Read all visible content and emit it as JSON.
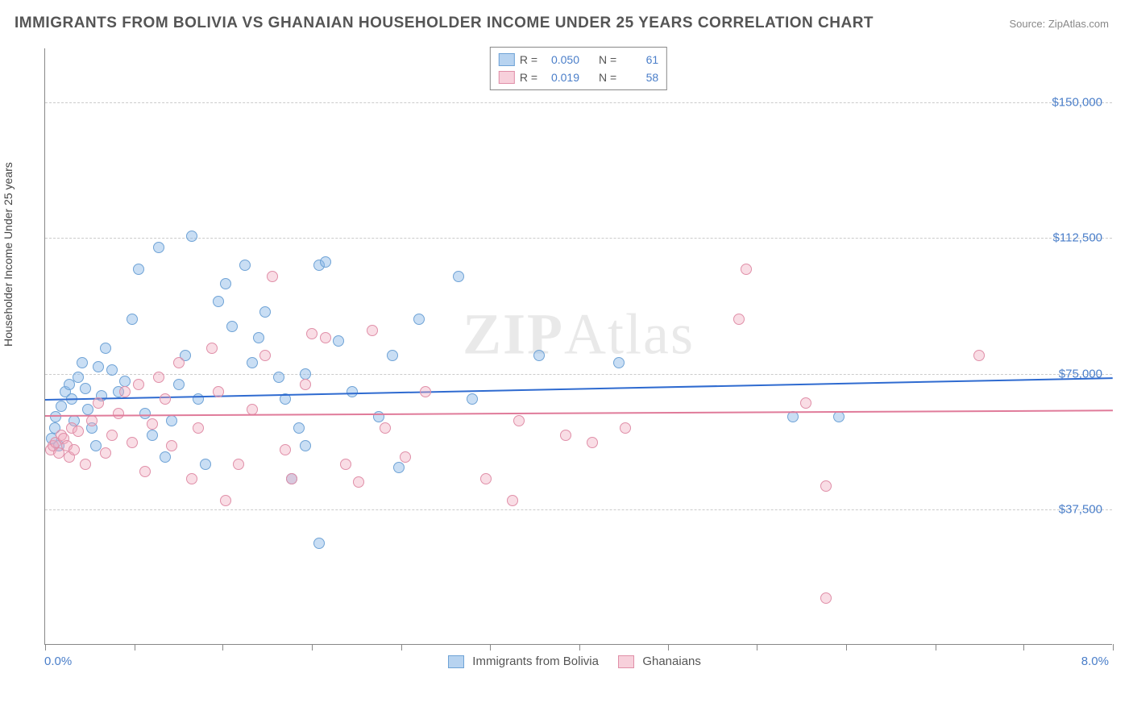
{
  "title": "IMMIGRANTS FROM BOLIVIA VS GHANAIAN HOUSEHOLDER INCOME UNDER 25 YEARS CORRELATION CHART",
  "source_prefix": "Source: ",
  "source": "ZipAtlas.com",
  "ylabel": "Householder Income Under 25 years",
  "watermark_a": "ZIP",
  "watermark_b": "Atlas",
  "chart": {
    "type": "scatter",
    "xlim": [
      0,
      8
    ],
    "ylim": [
      0,
      165000
    ],
    "x_tick_labels": [
      "0.0%",
      "8.0%"
    ],
    "x_minor_ticks": [
      0,
      0.67,
      1.33,
      2.0,
      2.67,
      3.33,
      4.0,
      4.67,
      5.33,
      6.0,
      6.67,
      7.33,
      8.0
    ],
    "y_grid": [
      {
        "v": 37500,
        "label": "$37,500"
      },
      {
        "v": 75000,
        "label": "$75,000"
      },
      {
        "v": 112500,
        "label": "$112,500"
      },
      {
        "v": 150000,
        "label": "$150,000"
      }
    ],
    "grid_color": "#cccccc",
    "background_color": "#ffffff",
    "axis_color": "#888888",
    "point_radius": 7,
    "series": [
      {
        "key": "bolivia",
        "label": "Immigrants from Bolivia",
        "fill": "rgba(135,181,230,0.45)",
        "stroke": "#6fa3d6",
        "trend_color": "#2f6bd0",
        "r": "0.050",
        "n": "61",
        "trend": {
          "y_at_x0": 68000,
          "y_at_x8": 74000
        },
        "points": [
          [
            0.05,
            57000
          ],
          [
            0.07,
            60000
          ],
          [
            0.08,
            63000
          ],
          [
            0.1,
            55000
          ],
          [
            0.12,
            66000
          ],
          [
            0.15,
            70000
          ],
          [
            0.18,
            72000
          ],
          [
            0.2,
            68000
          ],
          [
            0.22,
            62000
          ],
          [
            0.25,
            74000
          ],
          [
            0.28,
            78000
          ],
          [
            0.3,
            71000
          ],
          [
            0.32,
            65000
          ],
          [
            0.35,
            60000
          ],
          [
            0.38,
            55000
          ],
          [
            0.4,
            77000
          ],
          [
            0.42,
            69000
          ],
          [
            0.45,
            82000
          ],
          [
            0.5,
            76000
          ],
          [
            0.55,
            70000
          ],
          [
            0.6,
            73000
          ],
          [
            0.65,
            90000
          ],
          [
            0.7,
            104000
          ],
          [
            0.75,
            64000
          ],
          [
            0.8,
            58000
          ],
          [
            0.85,
            110000
          ],
          [
            0.9,
            52000
          ],
          [
            0.95,
            62000
          ],
          [
            1.0,
            72000
          ],
          [
            1.05,
            80000
          ],
          [
            1.1,
            113000
          ],
          [
            1.15,
            68000
          ],
          [
            1.2,
            50000
          ],
          [
            1.3,
            95000
          ],
          [
            1.35,
            100000
          ],
          [
            1.4,
            88000
          ],
          [
            1.5,
            105000
          ],
          [
            1.55,
            78000
          ],
          [
            1.6,
            85000
          ],
          [
            1.65,
            92000
          ],
          [
            1.75,
            74000
          ],
          [
            1.8,
            68000
          ],
          [
            1.85,
            46000
          ],
          [
            1.9,
            60000
          ],
          [
            1.95,
            55000
          ],
          [
            2.05,
            105000
          ],
          [
            2.1,
            106000
          ],
          [
            2.2,
            84000
          ],
          [
            2.3,
            70000
          ],
          [
            2.5,
            63000
          ],
          [
            2.6,
            80000
          ],
          [
            2.65,
            49000
          ],
          [
            2.8,
            90000
          ],
          [
            3.1,
            102000
          ],
          [
            3.2,
            68000
          ],
          [
            3.7,
            80000
          ],
          [
            4.3,
            78000
          ],
          [
            5.6,
            63000
          ],
          [
            5.95,
            63000
          ],
          [
            2.05,
            28000
          ],
          [
            1.95,
            75000
          ]
        ]
      },
      {
        "key": "ghana",
        "label": "Ghanaians",
        "fill": "rgba(240,170,190,0.4)",
        "stroke": "#e08fa8",
        "trend_color": "#e07b9a",
        "r": "0.019",
        "n": "58",
        "trend": {
          "y_at_x0": 63500,
          "y_at_x8": 65000
        },
        "points": [
          [
            0.04,
            54000
          ],
          [
            0.06,
            55000
          ],
          [
            0.08,
            56000
          ],
          [
            0.1,
            53000
          ],
          [
            0.12,
            58000
          ],
          [
            0.14,
            57000
          ],
          [
            0.16,
            55000
          ],
          [
            0.18,
            52000
          ],
          [
            0.2,
            60000
          ],
          [
            0.22,
            54000
          ],
          [
            0.25,
            59000
          ],
          [
            0.3,
            50000
          ],
          [
            0.35,
            62000
          ],
          [
            0.4,
            67000
          ],
          [
            0.45,
            53000
          ],
          [
            0.5,
            58000
          ],
          [
            0.55,
            64000
          ],
          [
            0.6,
            70000
          ],
          [
            0.65,
            56000
          ],
          [
            0.7,
            72000
          ],
          [
            0.75,
            48000
          ],
          [
            0.8,
            61000
          ],
          [
            0.85,
            74000
          ],
          [
            0.9,
            68000
          ],
          [
            0.95,
            55000
          ],
          [
            1.0,
            78000
          ],
          [
            1.1,
            46000
          ],
          [
            1.15,
            60000
          ],
          [
            1.25,
            82000
          ],
          [
            1.3,
            70000
          ],
          [
            1.35,
            40000
          ],
          [
            1.45,
            50000
          ],
          [
            1.55,
            65000
          ],
          [
            1.65,
            80000
          ],
          [
            1.7,
            102000
          ],
          [
            1.8,
            54000
          ],
          [
            1.85,
            46000
          ],
          [
            1.95,
            72000
          ],
          [
            2.0,
            86000
          ],
          [
            2.1,
            85000
          ],
          [
            2.25,
            50000
          ],
          [
            2.35,
            45000
          ],
          [
            2.45,
            87000
          ],
          [
            2.55,
            60000
          ],
          [
            2.7,
            52000
          ],
          [
            2.85,
            70000
          ],
          [
            3.3,
            46000
          ],
          [
            3.5,
            40000
          ],
          [
            3.55,
            62000
          ],
          [
            3.9,
            58000
          ],
          [
            4.1,
            56000
          ],
          [
            4.35,
            60000
          ],
          [
            5.2,
            90000
          ],
          [
            5.25,
            104000
          ],
          [
            5.7,
            67000
          ],
          [
            5.85,
            44000
          ],
          [
            5.85,
            13000
          ],
          [
            7.0,
            80000
          ]
        ]
      }
    ]
  },
  "stats_labels": {
    "r": "R =",
    "n": "N ="
  }
}
